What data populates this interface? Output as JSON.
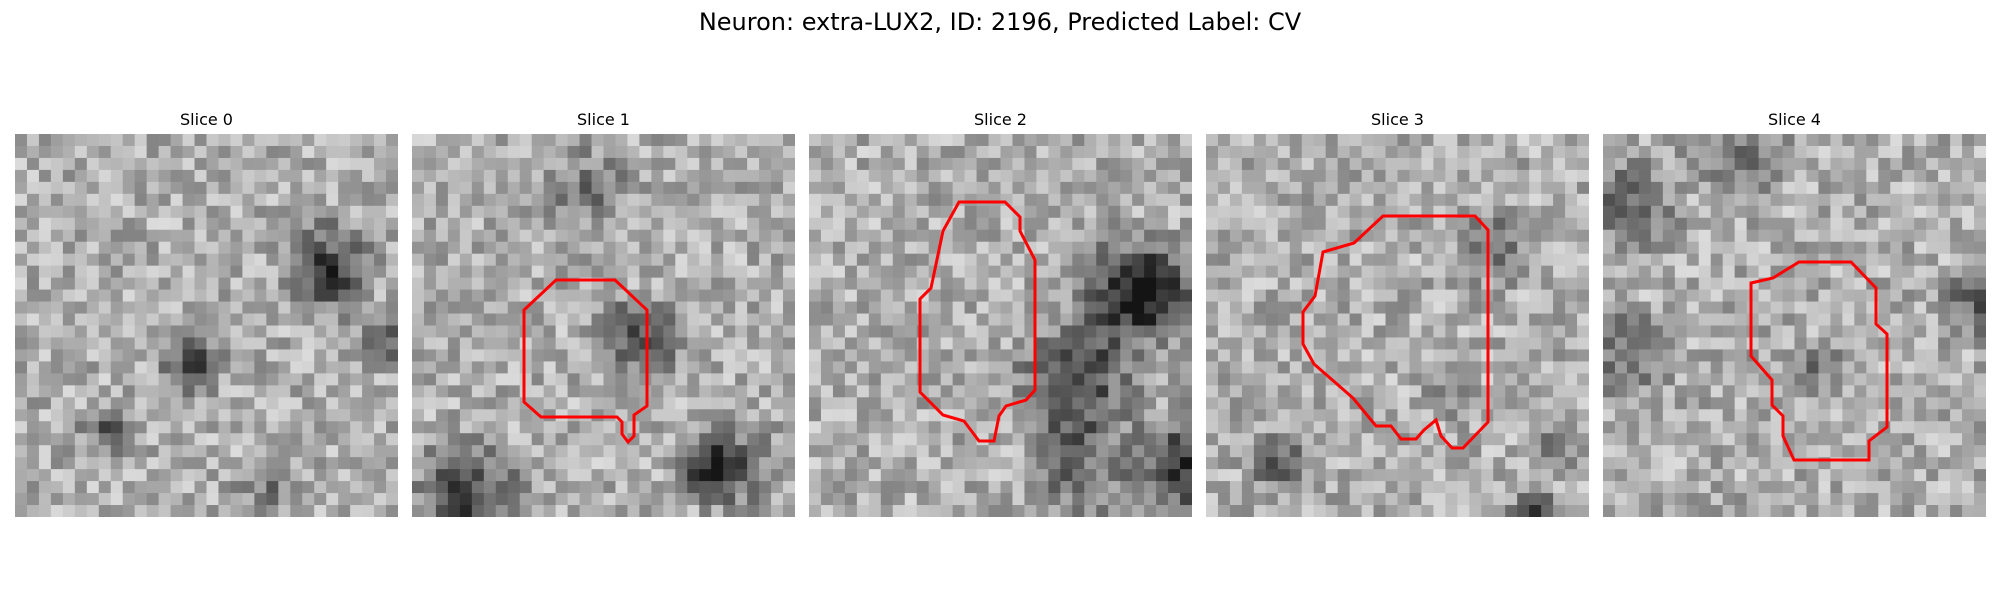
{
  "figure": {
    "title": "Neuron: extra-LUX2, ID: 2196, Predicted Label: CV"
  },
  "colors": {
    "contour": "#ff0000",
    "background": "#ffffff"
  },
  "panels": [
    {
      "title": "Slice 0",
      "has_contour": false
    },
    {
      "title": "Slice 1",
      "has_contour": true
    },
    {
      "title": "Slice 2",
      "has_contour": true
    },
    {
      "title": "Slice 3",
      "has_contour": true
    },
    {
      "title": "Slice 4",
      "has_contour": true
    }
  ]
}
